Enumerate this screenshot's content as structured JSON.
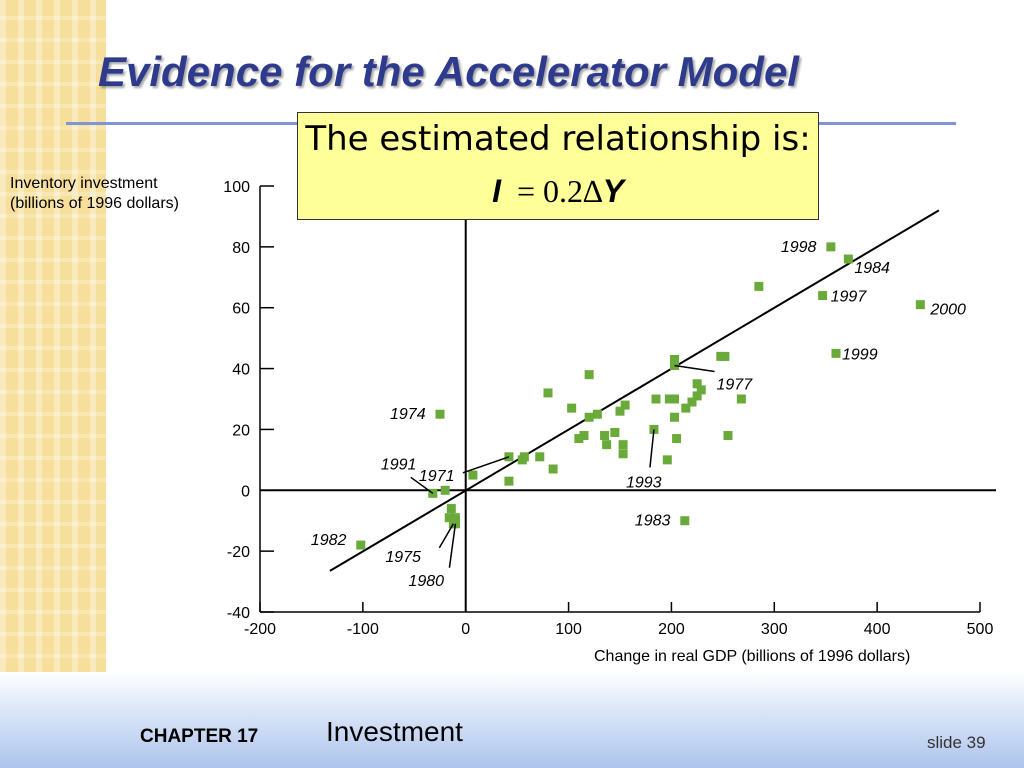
{
  "slide": {
    "title": "Evidence for the Accelerator Model",
    "chapter": "CHAPTER 17",
    "topic": "Investment",
    "slide_number": "slide 39"
  },
  "relationship": {
    "text": "The estimated relationship is:",
    "lhs": "I",
    "equals": "=",
    "coefficient": "0.2",
    "delta": "∆",
    "rhs": "Y"
  },
  "colors": {
    "title": "#2e3a8c",
    "rule": "#7f95d8",
    "box_fill": "#ffff99",
    "point": "#6aaa3a",
    "strip": "#f6df9a"
  },
  "chart_data": {
    "type": "scatter",
    "xlabel": "Change in real GDP (billions of 1996 dollars)",
    "ylabel": "Inventory investment (billions of 1996 dollars)",
    "xlim": [
      -200,
      500
    ],
    "ylim": [
      -40,
      100
    ],
    "x_ticks": [
      "-200",
      "-100",
      "0",
      "100",
      "200",
      "300",
      "400",
      "500"
    ],
    "y_ticks": [
      "-40",
      "-20",
      "0",
      "20",
      "40",
      "60",
      "80",
      "100"
    ],
    "fit_line": [
      [
        -132,
        -26.5
      ],
      [
        460,
        92
      ]
    ],
    "points": [
      {
        "x": 355,
        "y": 80,
        "label": "1998"
      },
      {
        "x": 372,
        "y": 76,
        "label": "1984"
      },
      {
        "x": 285,
        "y": 67,
        "label": ""
      },
      {
        "x": 347,
        "y": 64,
        "label": "1997"
      },
      {
        "x": 442,
        "y": 61,
        "label": "2000"
      },
      {
        "x": 360,
        "y": 45,
        "label": "1999"
      },
      {
        "x": 203,
        "y": 43,
        "label": ""
      },
      {
        "x": 203,
        "y": 41,
        "label": "1977"
      },
      {
        "x": 248,
        "y": 44,
        "label": ""
      },
      {
        "x": 252,
        "y": 44,
        "label": ""
      },
      {
        "x": 120,
        "y": 38,
        "label": ""
      },
      {
        "x": 80,
        "y": 32,
        "label": ""
      },
      {
        "x": 225,
        "y": 35,
        "label": ""
      },
      {
        "x": 229,
        "y": 33,
        "label": ""
      },
      {
        "x": 225,
        "y": 31,
        "label": ""
      },
      {
        "x": 268,
        "y": 30,
        "label": ""
      },
      {
        "x": 203,
        "y": 30,
        "label": ""
      },
      {
        "x": 198,
        "y": 30,
        "label": ""
      },
      {
        "x": 185,
        "y": 30,
        "label": ""
      },
      {
        "x": 214,
        "y": 27,
        "label": ""
      },
      {
        "x": 220,
        "y": 29,
        "label": ""
      },
      {
        "x": 155,
        "y": 28,
        "label": ""
      },
      {
        "x": 150,
        "y": 26,
        "label": ""
      },
      {
        "x": 103,
        "y": 27,
        "label": ""
      },
      {
        "x": 128,
        "y": 25,
        "label": ""
      },
      {
        "x": 120,
        "y": 24,
        "label": ""
      },
      {
        "x": 203,
        "y": 24,
        "label": ""
      },
      {
        "x": 183,
        "y": 20,
        "label": "1993"
      },
      {
        "x": 115,
        "y": 18,
        "label": ""
      },
      {
        "x": 135,
        "y": 18,
        "label": ""
      },
      {
        "x": 145,
        "y": 19,
        "label": ""
      },
      {
        "x": 255,
        "y": 18,
        "label": ""
      },
      {
        "x": 205,
        "y": 17,
        "label": ""
      },
      {
        "x": 110,
        "y": 17,
        "label": ""
      },
      {
        "x": 137,
        "y": 15,
        "label": ""
      },
      {
        "x": 153,
        "y": 15,
        "label": ""
      },
      {
        "x": 153,
        "y": 12,
        "label": ""
      },
      {
        "x": 42,
        "y": 11,
        "label": "1971"
      },
      {
        "x": 57,
        "y": 11,
        "label": ""
      },
      {
        "x": 72,
        "y": 11,
        "label": ""
      },
      {
        "x": 55,
        "y": 10,
        "label": ""
      },
      {
        "x": 196,
        "y": 10,
        "label": ""
      },
      {
        "x": 85,
        "y": 7,
        "label": ""
      },
      {
        "x": 7,
        "y": 5,
        "label": ""
      },
      {
        "x": 42,
        "y": 3,
        "label": ""
      },
      {
        "x": -25,
        "y": 25,
        "label": "1974"
      },
      {
        "x": -20,
        "y": 0,
        "label": ""
      },
      {
        "x": -32,
        "y": -1,
        "label": "1991"
      },
      {
        "x": -14,
        "y": -6,
        "label": ""
      },
      {
        "x": -16,
        "y": -9,
        "label": ""
      },
      {
        "x": -10,
        "y": -9,
        "label": ""
      },
      {
        "x": -12,
        "y": -11,
        "label": "1975"
      },
      {
        "x": -10,
        "y": -11,
        "label": "1980"
      },
      {
        "x": 213,
        "y": -10,
        "label": "1983"
      },
      {
        "x": -102,
        "y": -18,
        "label": "1982"
      }
    ]
  }
}
